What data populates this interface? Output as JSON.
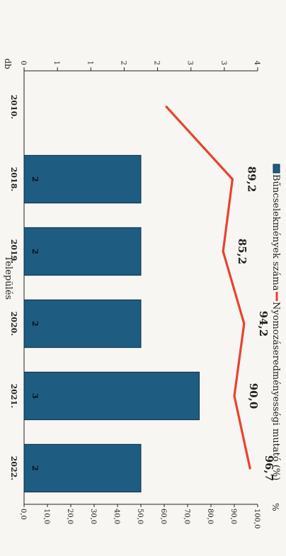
{
  "title": "Település",
  "chart_data": {
    "type": "bar",
    "categories": [
      "2010.",
      "2018.",
      "2019.",
      "2020.",
      "2021.",
      "2022."
    ],
    "series": [
      {
        "name": "Bűncselekmények száma",
        "type": "bar",
        "axis": "left",
        "values": [
          null,
          2,
          2,
          2,
          3,
          2
        ],
        "labels": [
          "",
          "2",
          "2",
          "2",
          "3",
          "2"
        ],
        "color": "#1e5c82"
      },
      {
        "name": "Nyomozáseredményességi mutató (%)",
        "type": "line",
        "axis": "right",
        "values": [
          61.0,
          89.2,
          85.2,
          94.2,
          90.0,
          96.7
        ],
        "labels": [
          "",
          "89,2",
          "85,2",
          "94,2",
          "90,0",
          "96,7"
        ],
        "color": "#e8432e"
      }
    ],
    "y_left": {
      "label": "db",
      "range": [
        0,
        4
      ],
      "ticks": [
        "0",
        "1",
        "1",
        "2",
        "2",
        "3",
        "3",
        "4"
      ]
    },
    "y_right": {
      "label": "%",
      "range": [
        0,
        100
      ],
      "ticks": [
        "0,0",
        "10,0",
        "20,0",
        "30,0",
        "40,0",
        "50,0",
        "60,0",
        "70,0",
        "80,0",
        "90,0",
        "100,0"
      ]
    },
    "legend_position": "top",
    "grid": false
  }
}
